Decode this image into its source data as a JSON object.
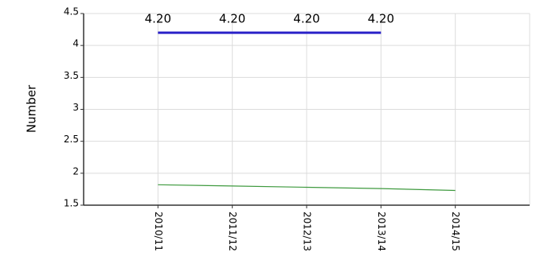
{
  "chart_data": {
    "type": "line",
    "ylabel": "Number",
    "categories": [
      "2010/11",
      "2011/12",
      "2012/13",
      "2013/14",
      "2014/15"
    ],
    "series": [
      {
        "color": "#2a22c8",
        "values": [
          4.2,
          4.2,
          4.2,
          4.2,
          null
        ],
        "value_labels": [
          "4.20",
          "4.20",
          "4.20",
          "4.20",
          null
        ]
      },
      {
        "color": "#3f9a3f",
        "values": [
          1.82,
          1.8,
          1.78,
          1.76,
          1.73
        ]
      }
    ],
    "ylim": [
      1.5,
      4.5
    ],
    "yticks": [
      1.5,
      2,
      2.5,
      3,
      3.5,
      4,
      4.5
    ],
    "grid": true
  }
}
